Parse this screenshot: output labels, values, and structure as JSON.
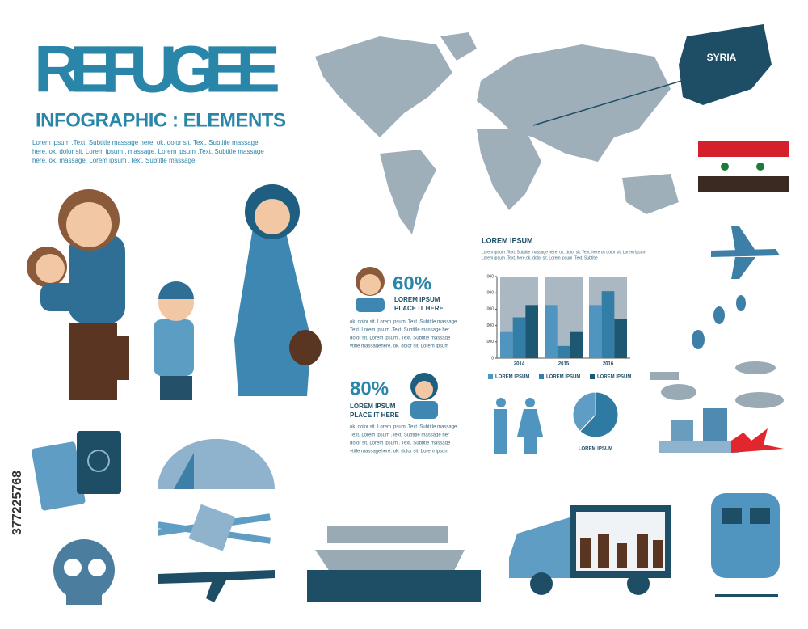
{
  "header": {
    "title": "REFUGEE",
    "subtitle": "INFOGRAPHIC : ELEMENTS",
    "intro": [
      "Lorem ipsum .Text. Subtitle massage here. ok. dolor sit. Text. Subtitle massage.",
      "here. ok. dolor sit. Lorem ipsum . massage. Lorem ipsum .Text. Subtitle massage",
      "here. ok. massage. Lorem ipsum .Text. Subtitle massage"
    ]
  },
  "map": {
    "label": "SYRIA"
  },
  "stats": [
    {
      "value": "60%",
      "caption": [
        "LOREM IPSUM",
        "PLACE IT HERE"
      ],
      "body": [
        "ok. dolor sit. Lorem ipsum .Text. Subtitle massage",
        "Text. Lorem ipsum .Text. Subtitle massage her",
        "dolor sit. Lorem ipsum . Text. Subtitle massage",
        "vtitle massagehere. ok. dolor sit. Lorem ipsum"
      ]
    },
    {
      "value": "80%",
      "caption": [
        "LOREM IPSUM",
        "PLACE IT HERE"
      ],
      "body": [
        "ok. dolor sit. Lorem ipsum .Text. Subtitle massage",
        "Text. Lorem ipsum .Text. Subtitle massage her",
        "dolor sit. Lorem ipsum . Text. Subtitle massage",
        "vtitle massagehere. ok. dolor sit. Lorem ipsum"
      ]
    }
  ],
  "side_id": "377225768",
  "chart_data": [
    {
      "type": "bar",
      "title": "LOREM IPSUM",
      "description": [
        "Lorem ipsum .Text. Subtitle massage here. ok. dolor sit. Text. here ok dolor sit. Lorem ipsum",
        "Lorem ipsum .Text. here.ok. dolor sit. Lorem ipsum .Text. Subtitle"
      ],
      "categories": [
        "2014",
        "2015",
        "2016"
      ],
      "series": [
        {
          "name": "LOREM IPSUM",
          "color": "#4f95c0",
          "values": [
            32,
            65,
            65
          ]
        },
        {
          "name": "LOREM IPSUM",
          "color": "#337ea6",
          "values": [
            50,
            15,
            82
          ]
        },
        {
          "name": "LOREM IPSUM",
          "color": "#1d5873",
          "values": [
            65,
            32,
            48
          ]
        }
      ],
      "ylim": [
        0,
        100
      ],
      "yticks": [
        {
          "value": 0,
          "label": "0"
        },
        {
          "value": 20,
          "label": ".000"
        },
        {
          "value": 40,
          "label": ".000"
        },
        {
          "value": 60,
          "label": ".000"
        },
        {
          "value": 80,
          "label": ".000"
        },
        {
          "value": 100,
          "label": ".000"
        }
      ]
    },
    {
      "type": "pie",
      "label": "LOREM IPSUM",
      "values": [
        62,
        38
      ],
      "colors": [
        "#2f7aa3",
        "#5f9dc4"
      ]
    }
  ]
}
